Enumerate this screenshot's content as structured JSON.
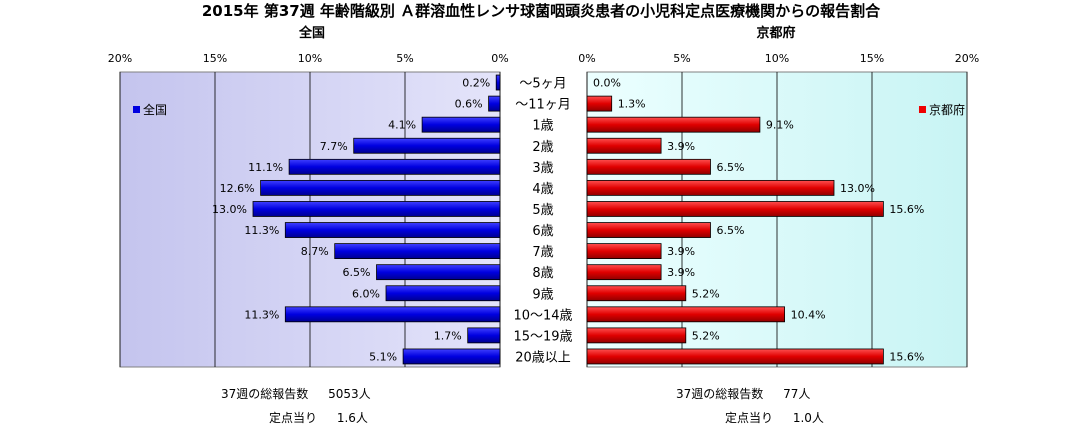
{
  "title": "2015年 第37週 年齢階級別 Ａ群溶血性レンサ球菌咽頭炎患者の小児科定点医療機関からの報告割合",
  "colors": {
    "national_bar": "#0000e0",
    "kyoto_bar": "#ee0000",
    "plot_bg_left": "#c8c8f0",
    "plot_bg_right": "#d8ffff",
    "grid": "#000000"
  },
  "chart_data": [
    {
      "type": "bar",
      "orientation": "horizontal",
      "subtitle": "全国",
      "direction": "right-to-left",
      "xlim": [
        0,
        20
      ],
      "ticks": [
        "20%",
        "15%",
        "10%",
        "5%",
        "0%"
      ],
      "tick_values": [
        20,
        15,
        10,
        5,
        0
      ],
      "grid": true,
      "legend": {
        "label": "全国",
        "placement": "top-left"
      },
      "categories": [
        "～5ヶ月",
        "～11ヶ月",
        "1歳",
        "2歳",
        "3歳",
        "4歳",
        "5歳",
        "6歳",
        "7歳",
        "8歳",
        "9歳",
        "10～14歳",
        "15～19歳",
        "20歳以上"
      ],
      "values": [
        0.2,
        0.6,
        4.1,
        7.7,
        11.1,
        12.6,
        13.0,
        11.3,
        8.7,
        6.5,
        6.0,
        11.3,
        1.7,
        5.1
      ],
      "value_labels": [
        "0.2%",
        "0.6%",
        "4.1%",
        "7.7%",
        "11.1%",
        "12.6%",
        "13.0%",
        "11.3%",
        "8.7%",
        "6.5%",
        "6.0%",
        "11.3%",
        "1.7%",
        "5.1%"
      ]
    },
    {
      "type": "bar",
      "orientation": "horizontal",
      "subtitle": "京都府",
      "direction": "left-to-right",
      "xlim": [
        0,
        20
      ],
      "ticks": [
        "0%",
        "5%",
        "10%",
        "15%",
        "20%"
      ],
      "tick_values": [
        0,
        5,
        10,
        15,
        20
      ],
      "grid": true,
      "legend": {
        "label": "京都府",
        "placement": "top-right"
      },
      "categories": [
        "～5ヶ月",
        "～11ヶ月",
        "1歳",
        "2歳",
        "3歳",
        "4歳",
        "5歳",
        "6歳",
        "7歳",
        "8歳",
        "9歳",
        "10～14歳",
        "15～19歳",
        "20歳以上"
      ],
      "values": [
        0.0,
        1.3,
        9.1,
        3.9,
        6.5,
        13.0,
        15.6,
        6.5,
        3.9,
        3.9,
        5.2,
        10.4,
        5.2,
        15.6
      ],
      "value_labels": [
        "0.0%",
        "1.3%",
        "9.1%",
        "3.9%",
        "6.5%",
        "13.0%",
        "15.6%",
        "6.5%",
        "3.9%",
        "3.9%",
        "5.2%",
        "10.4%",
        "5.2%",
        "15.6%"
      ]
    }
  ],
  "footer": {
    "national": {
      "total_label": "37週の総報告数",
      "total_value": "5053人",
      "per_site_label": "定点当り",
      "per_site_value": "1.6人"
    },
    "kyoto": {
      "total_label": "37週の総報告数",
      "total_value": "77人",
      "per_site_label": "定点当り",
      "per_site_value": "1.0人"
    }
  }
}
